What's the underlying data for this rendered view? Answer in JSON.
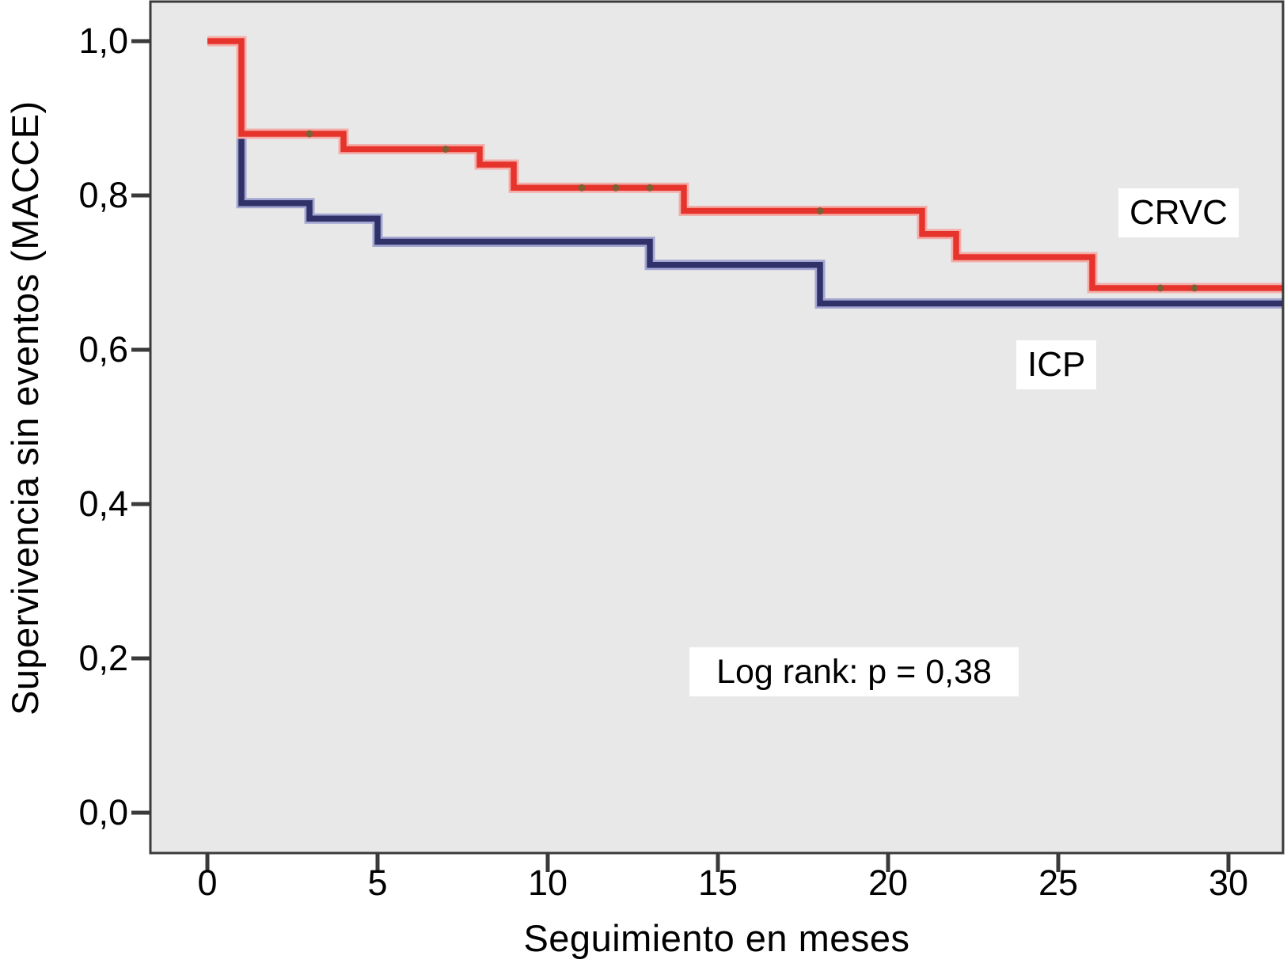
{
  "chart_data": {
    "type": "line",
    "subtype": "kaplan-meier-step",
    "title": "",
    "xlabel": "Seguimiento en meses",
    "ylabel": "Supervivencia sin eventos (MACCE)",
    "xlim": [
      -1.7,
      31.6
    ],
    "ylim": [
      -0.05,
      1.05
    ],
    "grid": false,
    "legend_position": "inline-labels",
    "x_ticks": [
      0,
      5,
      10,
      15,
      20,
      25,
      30
    ],
    "x_tick_labels": [
      "0",
      "5",
      "10",
      "15",
      "20",
      "25",
      "30"
    ],
    "y_ticks": [
      0.0,
      0.2,
      0.4,
      0.6,
      0.8,
      1.0
    ],
    "y_tick_labels": [
      "0,0",
      "0,2",
      "0,4",
      "0,6",
      "0,8",
      "1,0"
    ],
    "annotation": "Log rank: p = 0,38",
    "censor_mark_color": "#7d5f33",
    "series": [
      {
        "name": "CRVC",
        "color": "#e6342c",
        "halo_color": "#f3aeaa",
        "steps": [
          [
            0,
            1.0
          ],
          [
            1,
            0.88
          ],
          [
            4,
            0.86
          ],
          [
            8,
            0.84
          ],
          [
            9,
            0.81
          ],
          [
            14,
            0.78
          ],
          [
            21,
            0.75
          ],
          [
            22,
            0.72
          ],
          [
            26,
            0.68
          ]
        ],
        "end_x": 31.6,
        "censored": [
          [
            3,
            0.88
          ],
          [
            7,
            0.86
          ],
          [
            11,
            0.81
          ],
          [
            12,
            0.81
          ],
          [
            13,
            0.81
          ],
          [
            18,
            0.78
          ],
          [
            28,
            0.68
          ],
          [
            29,
            0.68
          ]
        ]
      },
      {
        "name": "ICP",
        "color": "#2f3168",
        "halo_color": "#a3a6d2",
        "steps": [
          [
            0,
            1.0
          ],
          [
            1,
            0.79
          ],
          [
            3,
            0.77
          ],
          [
            5,
            0.74
          ],
          [
            13,
            0.71
          ],
          [
            18,
            0.66
          ]
        ],
        "end_x": 31.6,
        "censored": []
      }
    ]
  },
  "colors": {
    "page_background": "#ffffff",
    "plot_background": "#e9e8e8",
    "axis_frame": "#3a3a3a",
    "text": "#000000",
    "label_box_background": "#ffffff"
  }
}
